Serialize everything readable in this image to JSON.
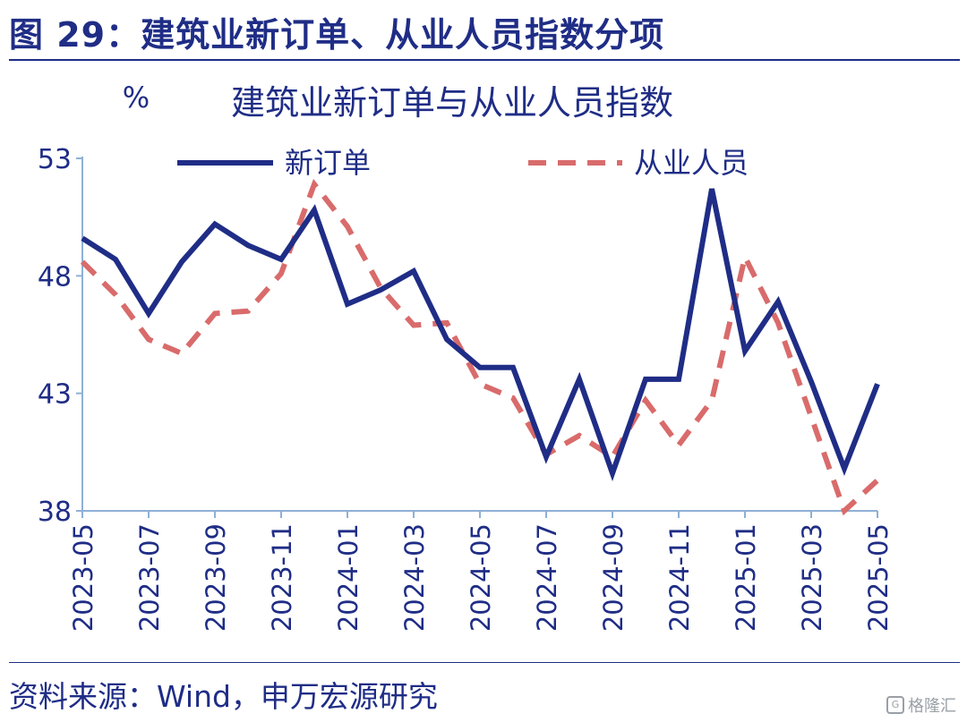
{
  "figure": {
    "title": "图 29：建筑业新订单、从业人员指数分项",
    "source": "资料来源：Wind，申万宏源研究",
    "watermark": "格隆汇"
  },
  "colors": {
    "primary": "#1f2d86",
    "secondary": "#d96b6b",
    "axis": "#8fb0d6"
  },
  "chart_data": {
    "type": "line",
    "title": "建筑业新订单与从业人员指数",
    "ylabel": "%",
    "ylim": [
      38,
      53
    ],
    "yticks": [
      38,
      43,
      48,
      53
    ],
    "x": [
      "2023-05",
      "2023-06",
      "2023-07",
      "2023-08",
      "2023-09",
      "2023-10",
      "2023-11",
      "2023-12",
      "2024-01",
      "2024-02",
      "2024-03",
      "2024-04",
      "2024-05",
      "2024-06",
      "2024-07",
      "2024-08",
      "2024-09",
      "2024-10",
      "2024-11",
      "2024-12",
      "2025-01",
      "2025-02",
      "2025-03",
      "2025-04",
      "2025-05"
    ],
    "xtick_labels": [
      "2023-05",
      "2023-07",
      "2023-09",
      "2023-11",
      "2024-01",
      "2024-03",
      "2024-05",
      "2024-07",
      "2024-09",
      "2024-11",
      "2025-01",
      "2025-03",
      "2025-05"
    ],
    "legend_position": "top",
    "series": [
      {
        "name": "新订单",
        "style": "solid",
        "values": [
          49.6,
          48.7,
          46.4,
          48.6,
          50.2,
          49.3,
          48.7,
          50.8,
          46.8,
          47.4,
          48.2,
          45.3,
          44.1,
          44.1,
          40.3,
          43.6,
          39.6,
          43.6,
          43.6,
          51.7,
          44.8,
          46.9,
          43.5,
          39.8,
          43.4
        ]
      },
      {
        "name": "从业人员",
        "style": "dashed",
        "values": [
          48.6,
          47.2,
          45.3,
          44.7,
          46.4,
          46.5,
          48.1,
          51.9,
          50.1,
          47.5,
          45.9,
          46.0,
          43.4,
          42.8,
          40.4,
          41.2,
          40.3,
          42.7,
          40.8,
          42.7,
          48.8,
          46.0,
          42.0,
          38.0,
          39.3
        ]
      }
    ]
  }
}
